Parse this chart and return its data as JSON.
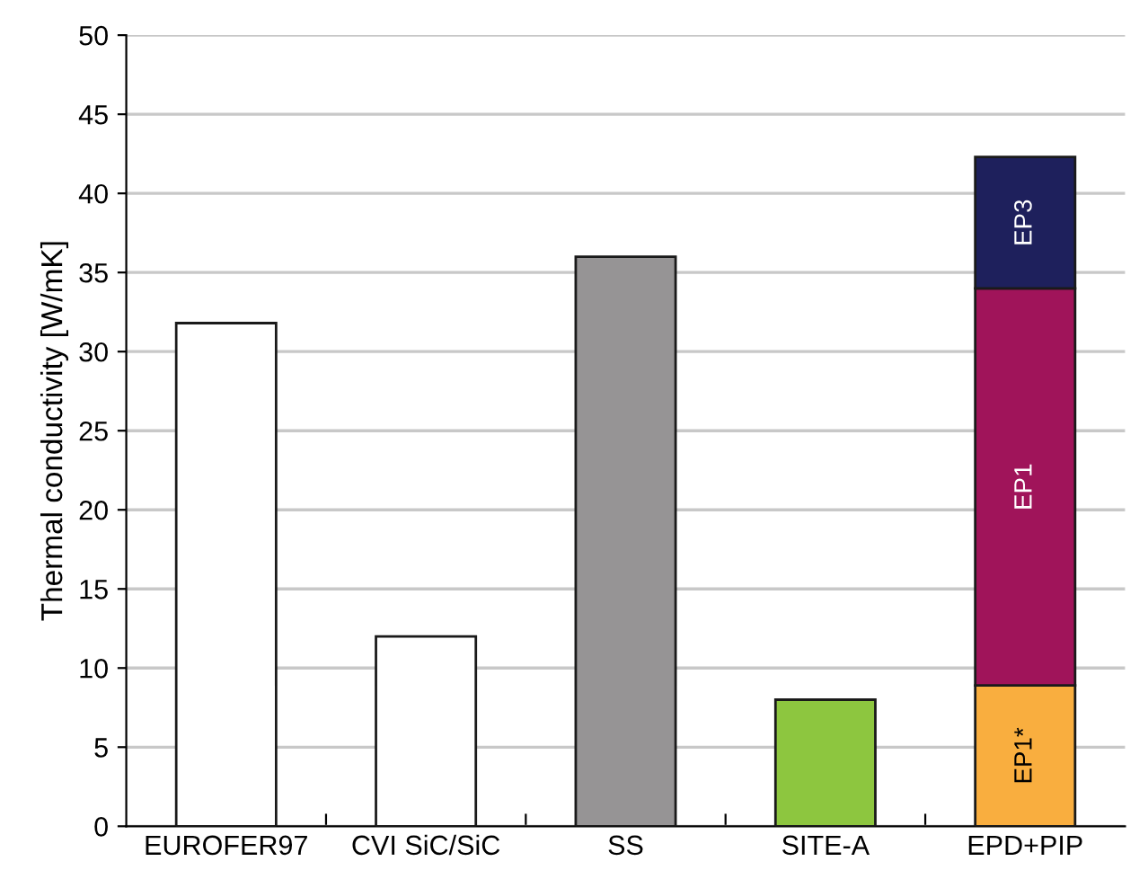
{
  "chart_data": {
    "type": "bar",
    "ylabel": "Thermal conductivity [W/mK]",
    "categories": [
      "EUROFER97",
      "CVI SiC/SiC",
      "SS",
      "SITE-A",
      "EPD+PIP"
    ],
    "stacked": true,
    "ylim": [
      0,
      50
    ],
    "yticks": [
      0,
      5,
      10,
      15,
      20,
      25,
      30,
      35,
      40,
      45,
      50
    ],
    "grid": "y",
    "legend": false,
    "series": [
      {
        "colors": [
          "#ffffff",
          "#ffffff",
          "#969495",
          "#8dc63f",
          "#ffffff"
        ],
        "values": [
          31.8,
          12.0,
          36.0,
          8.0,
          null
        ]
      },
      {
        "name": "EP1*",
        "color": "#f9ae3f",
        "values": [
          null,
          null,
          null,
          null,
          8.9
        ]
      },
      {
        "name": "EP1",
        "color": "#a0145a",
        "values": [
          null,
          null,
          null,
          null,
          25.1
        ]
      },
      {
        "name": "EP3",
        "color": "#1e205c",
        "values": [
          null,
          null,
          null,
          null,
          8.3
        ]
      }
    ]
  }
}
